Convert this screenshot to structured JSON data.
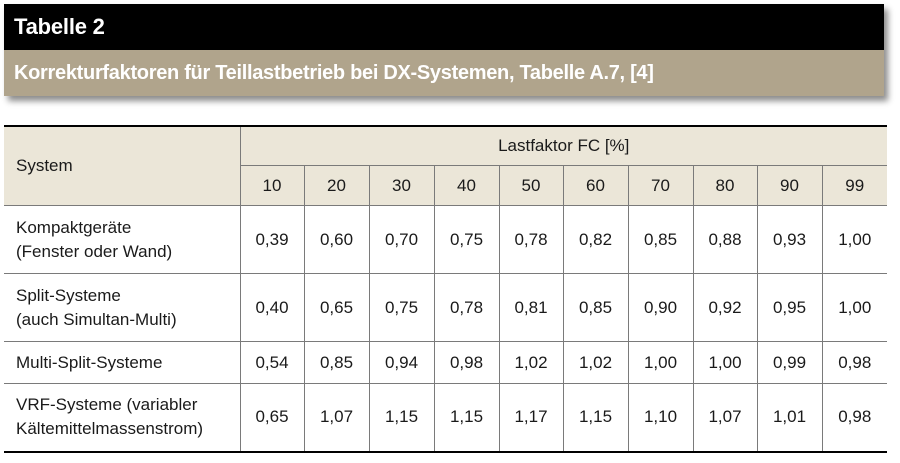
{
  "header": {
    "title": "Tabelle 2",
    "subtitle": "Korrekturfaktoren für Teillastbetrieb bei DX-Systemen, Tabelle A.7, [4]"
  },
  "table": {
    "system_header": "System",
    "group_header": "Lastfaktor FC [%]",
    "columns": [
      "10",
      "20",
      "30",
      "40",
      "50",
      "60",
      "70",
      "80",
      "90",
      "99"
    ],
    "rows": [
      {
        "label_line1": "Kompaktgeräte",
        "label_line2": "(Fenster oder Wand)",
        "values": [
          "0,39",
          "0,60",
          "0,70",
          "0,75",
          "0,78",
          "0,82",
          "0,85",
          "0,88",
          "0,93",
          "1,00"
        ]
      },
      {
        "label_line1": "Split-Systeme",
        "label_line2": "(auch Simultan-Multi)",
        "values": [
          "0,40",
          "0,65",
          "0,75",
          "0,78",
          "0,81",
          "0,85",
          "0,90",
          "0,92",
          "0,95",
          "1,00"
        ]
      },
      {
        "label_line1": "Multi-Split-Systeme",
        "label_line2": "",
        "values": [
          "0,54",
          "0,85",
          "0,94",
          "0,98",
          "1,02",
          "1,02",
          "1,00",
          "1,00",
          "0,99",
          "0,98"
        ]
      },
      {
        "label_line1": "VRF-Systeme (variabler",
        "label_line2": "Kältemittelmassenstrom)",
        "values": [
          "0,65",
          "1,07",
          "1,15",
          "1,15",
          "1,17",
          "1,15",
          "1,10",
          "1,07",
          "1,01",
          "0,98"
        ]
      }
    ]
  },
  "colors": {
    "title_bg": "#000000",
    "subtitle_bg": "#b0a48c",
    "header_bg": "#ebe6d8"
  }
}
